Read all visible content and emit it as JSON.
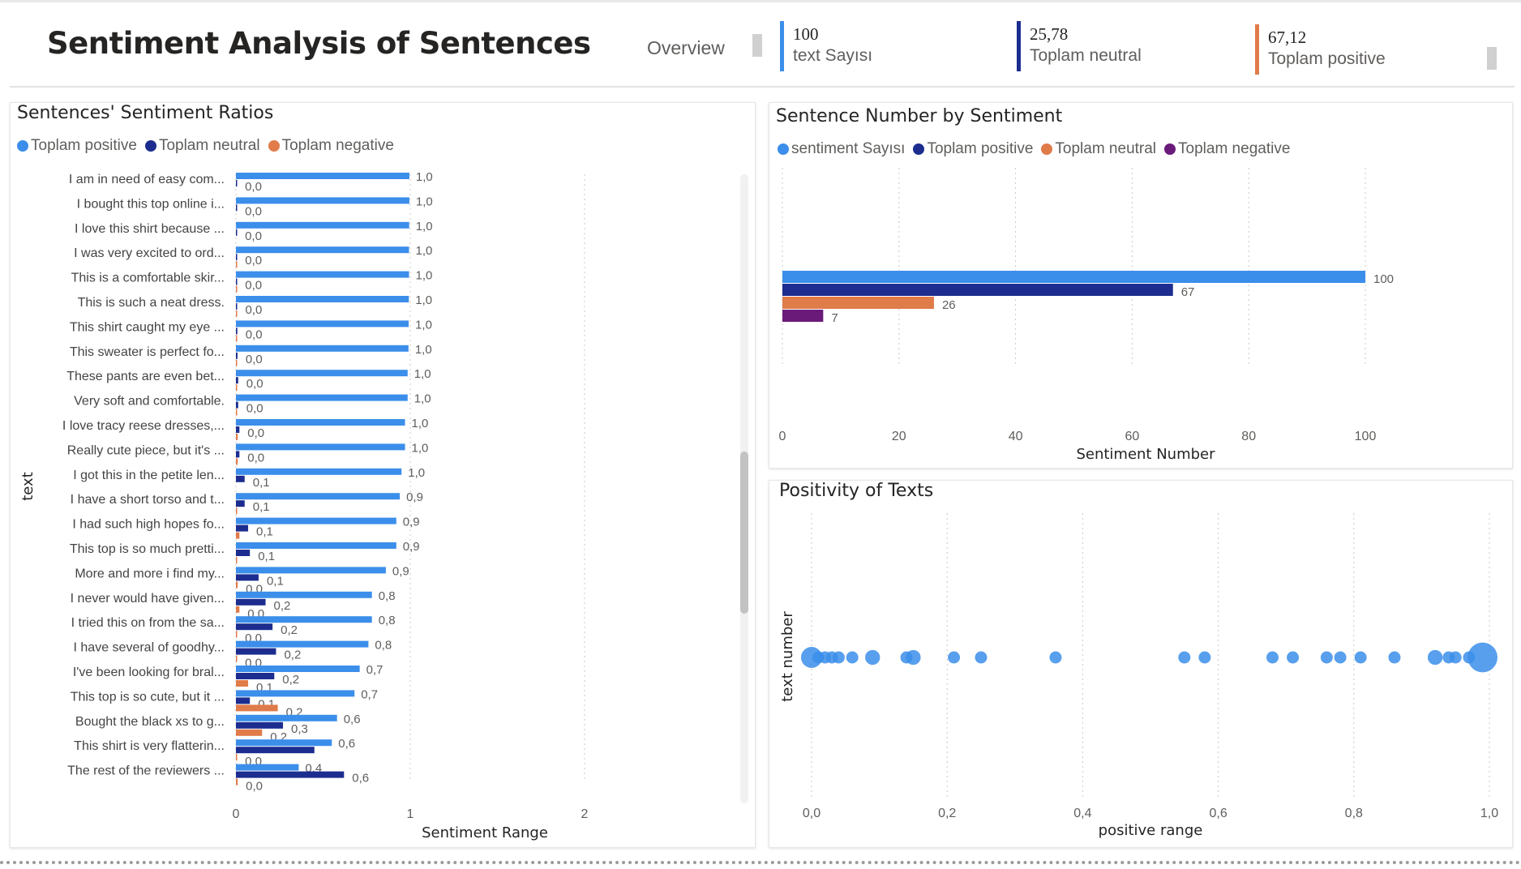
{
  "header": {
    "title": "Sentiment Analysis of Sentences",
    "nav_overview": "Overview",
    "kpis": [
      {
        "value": "100",
        "label": "text Sayısı",
        "color": "#3b8eea"
      },
      {
        "value": "25,78",
        "label": "Toplam neutral",
        "color": "#1c2d8f"
      },
      {
        "value": "67,12",
        "label": "Toplam positive",
        "color": "#e07b4a"
      }
    ]
  },
  "colors": {
    "blue": "#3b8eea",
    "navy": "#1c2d8f",
    "orange": "#e07b4a",
    "purple": "#6a1b7a"
  },
  "panels": {
    "ratios": {
      "title": "Sentences' Sentiment Ratios",
      "legend": [
        "Toplam positive",
        "Toplam neutral",
        "Toplam negative"
      ],
      "y_title": "text",
      "x_title": "Sentiment Range"
    },
    "counts": {
      "title": "Sentence Number by Sentiment",
      "legend": [
        "sentiment Sayısı",
        "Toplam positive",
        "Toplam neutral",
        "Toplam negative"
      ],
      "x_title": "Sentiment Number"
    },
    "positivity": {
      "title": "Positivity of Texts",
      "y_title": "text number",
      "x_title": "positive range"
    }
  },
  "chart_data": [
    {
      "type": "bar",
      "orientation": "horizontal",
      "title": "Sentences' Sentiment Ratios",
      "xlabel": "Sentiment Range",
      "ylabel": "text",
      "xlim": [
        0,
        3
      ],
      "xticks": [
        "0",
        "1",
        "2"
      ],
      "legend_position": "top-left",
      "grid": true,
      "categories": [
        "I am in need of easy com...",
        "I bought this top online i...",
        "I love this shirt because ...",
        "I was very excited to ord...",
        "This is a comfortable skir...",
        "This is such a neat dress.",
        "This shirt caught my eye ...",
        "This sweater is perfect fo...",
        "These pants are even bet...",
        "Very soft and comfortable.",
        "I love tracy reese dresses,...",
        "Really cute piece, but it's ...",
        "I got this in the petite len...",
        "I have a short torso and t...",
        "I had such high hopes fo...",
        "This top is so much pretti...",
        "More and more i find my...",
        "I never would have given...",
        "I tried this on from the sa...",
        "I have several of goodhy...",
        "I've been looking for bral...",
        "This top is so cute, but it ...",
        "Bought the black xs to g...",
        "This shirt is very flatterin...",
        "The rest of the reviewers ..."
      ],
      "series": [
        {
          "name": "Toplam positive",
          "values": [
            0.995,
            0.995,
            0.994,
            0.993,
            0.993,
            0.992,
            0.991,
            0.99,
            0.985,
            0.985,
            0.97,
            0.97,
            0.95,
            0.94,
            0.92,
            0.92,
            0.86,
            0.78,
            0.78,
            0.76,
            0.71,
            0.68,
            0.58,
            0.55,
            0.36
          ],
          "labels": [
            "1,0",
            "1,0",
            "1,0",
            "1,0",
            "1,0",
            "1,0",
            "1,0",
            "1,0",
            "1,0",
            "1,0",
            "1,0",
            "1,0",
            "1,0",
            "0,9",
            "0,9",
            "0,9",
            "0,9",
            "0,8",
            "0,8",
            "0,8",
            "0,7",
            "0,7",
            "0,6",
            "0,6",
            "0,4"
          ]
        },
        {
          "name": "Toplam neutral",
          "values": [
            0.005,
            0.005,
            0.005,
            0.006,
            0.006,
            0.007,
            0.008,
            0.009,
            0.013,
            0.013,
            0.02,
            0.02,
            0.05,
            0.05,
            0.07,
            0.08,
            0.13,
            0.17,
            0.21,
            0.23,
            0.22,
            0.08,
            0.27,
            0.45,
            0.62
          ],
          "labels": [
            "0,0",
            "0,0",
            "0,0",
            "0,0",
            "0,0",
            "0,0",
            "0,0",
            "0,0",
            "0,0",
            "0,0",
            "0,0",
            "0,0",
            "0,1",
            "0,1",
            "0,1",
            "0,1",
            "0,1",
            "0,2",
            "0,2",
            "0,2",
            "0,2",
            "0,1",
            "0,3",
            "",
            "0,6"
          ]
        },
        {
          "name": "Toplam negative",
          "values": [
            0.0,
            0.0,
            0.0,
            0.001,
            0.001,
            0.001,
            0.001,
            0.001,
            0.002,
            0.002,
            0.01,
            0.01,
            0.0,
            0.002,
            0.02,
            0.002,
            0.01,
            0.02,
            0.005,
            0.005,
            0.07,
            0.24,
            0.15,
            0.005,
            0.01
          ],
          "labels": [
            "",
            "",
            "",
            "",
            "",
            "",
            "",
            "",
            "",
            "",
            "",
            "",
            "",
            "",
            "",
            "",
            "0,0",
            "0,0",
            "0,0",
            "0,0",
            "0,1",
            "0,2",
            "0,2",
            "0,0",
            "0,0"
          ]
        }
      ]
    },
    {
      "type": "bar",
      "orientation": "horizontal",
      "title": "Sentence Number by Sentiment",
      "xlabel": "Sentiment Number",
      "xlim": [
        0,
        100
      ],
      "xticks": [
        "0",
        "20",
        "40",
        "60",
        "80",
        "100"
      ],
      "legend_position": "top-left",
      "grid": true,
      "series": [
        {
          "name": "sentiment Sayısı",
          "values": [
            100
          ],
          "labels": [
            "100"
          ]
        },
        {
          "name": "Toplam positive",
          "values": [
            67
          ],
          "labels": [
            "67"
          ]
        },
        {
          "name": "Toplam neutral",
          "values": [
            26
          ],
          "labels": [
            "26"
          ]
        },
        {
          "name": "Toplam negative",
          "values": [
            7
          ],
          "labels": [
            "7"
          ]
        }
      ]
    },
    {
      "type": "scatter",
      "title": "Positivity of Texts",
      "xlabel": "positive range",
      "ylabel": "text number",
      "xlim": [
        0,
        1
      ],
      "xticks": [
        "0,0",
        "0,2",
        "0,4",
        "0,6",
        "0,8",
        "1,0"
      ],
      "grid": true,
      "x": [
        0.0,
        0.01,
        0.02,
        0.03,
        0.04,
        0.06,
        0.09,
        0.14,
        0.15,
        0.21,
        0.25,
        0.36,
        0.55,
        0.58,
        0.68,
        0.71,
        0.76,
        0.78,
        0.81,
        0.86,
        0.92,
        0.94,
        0.95,
        0.97,
        0.99
      ],
      "y": [
        1,
        1,
        1,
        1,
        1,
        1,
        1,
        1,
        1,
        1,
        1,
        1,
        1,
        1,
        1,
        1,
        1,
        1,
        1,
        1,
        1,
        1,
        1,
        1,
        1
      ],
      "sizes": [
        3,
        1,
        1,
        1,
        1,
        1,
        1.5,
        1,
        1.5,
        1,
        1,
        1,
        1,
        1,
        1,
        1,
        1,
        1,
        1,
        1,
        1.5,
        1,
        1,
        1,
        6
      ]
    }
  ]
}
